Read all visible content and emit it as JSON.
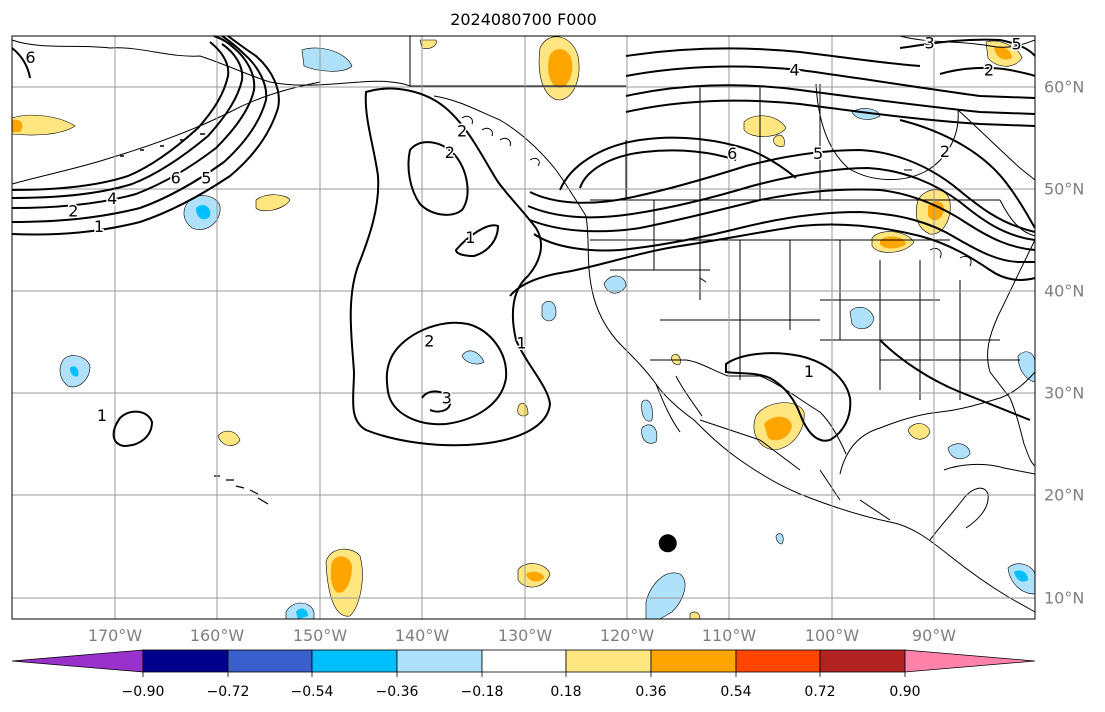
{
  "title": "2024080700 F000",
  "lon_labels": [
    {
      "lon": -170,
      "label": "170°W"
    },
    {
      "lon": -160,
      "label": "160°W"
    },
    {
      "lon": -150,
      "label": "150°W"
    },
    {
      "lon": -140,
      "label": "140°W"
    },
    {
      "lon": -130,
      "label": "130°W"
    },
    {
      "lon": -120,
      "label": "120°W"
    },
    {
      "lon": -110,
      "label": "110°W"
    },
    {
      "lon": -100,
      "label": "100°W"
    },
    {
      "lon": -90,
      "label": "90°W"
    }
  ],
  "lat_labels": [
    {
      "lat": 60,
      "label": "60°N"
    },
    {
      "lat": 50,
      "label": "50°N"
    },
    {
      "lat": 40,
      "label": "40°N"
    },
    {
      "lat": 30,
      "label": "30°N"
    },
    {
      "lat": 20,
      "label": "20°N"
    },
    {
      "lat": 10,
      "label": "10°N"
    }
  ],
  "map_extent": {
    "lon_min": -180,
    "lon_max": -80,
    "lat_min": 8,
    "lat_max": 65
  },
  "grid_color": "#999999",
  "colorbar": {
    "ticks": [
      "−0.90",
      "−0.72",
      "−0.54",
      "−0.36",
      "−0.18",
      "0.18",
      "0.36",
      "0.54",
      "0.72",
      "0.90"
    ],
    "colors": [
      "#9932cc",
      "#00008b",
      "#3a5fcd",
      "#00bfff",
      "#afe1fa",
      "#ffffff",
      "#ffe680",
      "#ffa500",
      "#ff4500",
      "#b22222",
      "#ff82ab"
    ]
  },
  "contour_labels": [
    {
      "text": "6",
      "lon": -178.2,
      "lat": 62.8
    },
    {
      "text": "2",
      "lon": -174,
      "lat": 47.8
    },
    {
      "text": "4",
      "lon": -170.2,
      "lat": 49.0
    },
    {
      "text": "1",
      "lon": -171.5,
      "lat": 46.3
    },
    {
      "text": "6",
      "lon": -164,
      "lat": 51.0
    },
    {
      "text": "5",
      "lon": -161,
      "lat": 51.0
    },
    {
      "text": "2",
      "lon": -136,
      "lat": 55.6
    },
    {
      "text": "2",
      "lon": -137.2,
      "lat": 53.5
    },
    {
      "text": "1",
      "lon": -135.2,
      "lat": 45.2
    },
    {
      "text": "2",
      "lon": -139.2,
      "lat": 35.1
    },
    {
      "text": "3",
      "lon": -137.5,
      "lat": 29.5
    },
    {
      "text": "1",
      "lon": -130.2,
      "lat": 34.9
    },
    {
      "text": "1",
      "lon": -171.2,
      "lat": 27.8
    },
    {
      "text": "4",
      "lon": -103.5,
      "lat": 61.6
    },
    {
      "text": "2",
      "lon": -84.5,
      "lat": 61.6
    },
    {
      "text": "6",
      "lon": -109.6,
      "lat": 53.4
    },
    {
      "text": "5",
      "lon": -101.2,
      "lat": 53.4
    },
    {
      "text": "2",
      "lon": -88.8,
      "lat": 53.6
    },
    {
      "text": "1",
      "lon": -102.1,
      "lat": 32.1
    },
    {
      "text": "3",
      "lon": -90.3,
      "lat": 64.2
    },
    {
      "text": "5",
      "lon": -81.8,
      "lat": 64.1
    }
  ],
  "marker": {
    "name": "black-dot",
    "lon": -115.9,
    "lat": 15.4
  }
}
